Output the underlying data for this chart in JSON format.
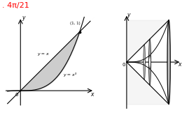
{
  "title_text": ". 4π/21",
  "title_color": "red",
  "title_fontsize": 8,
  "left": {
    "xlabel": "x",
    "ylabel": "y",
    "origin_label": "0",
    "point_label": "(1, 1)",
    "curve1_label": "y = x",
    "curve2_label": "y = x³",
    "shade_color": "#c8c8c8",
    "xlim": [
      -0.28,
      1.25
    ],
    "ylim": [
      -0.28,
      1.25
    ]
  },
  "right": {
    "xlabel": "x",
    "ylabel": "y",
    "origin_label": "0",
    "shade_color": "#888888",
    "xlim": [
      -0.25,
      1.3
    ],
    "ylim": [
      -1.15,
      1.15
    ]
  }
}
